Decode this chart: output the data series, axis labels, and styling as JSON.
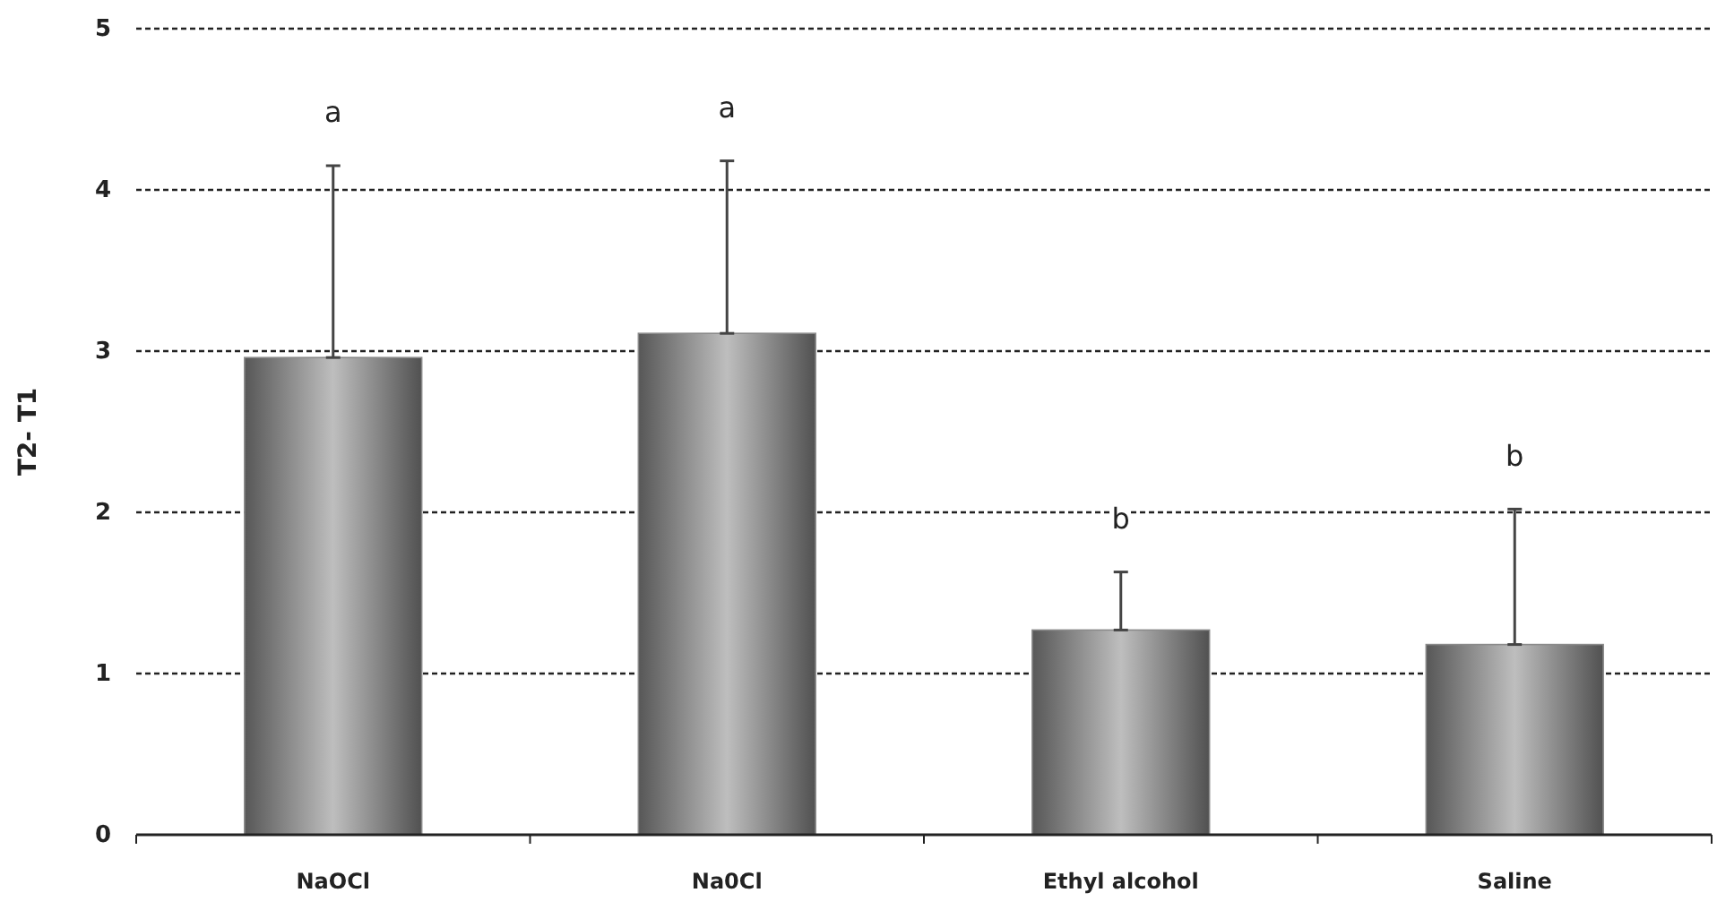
{
  "chart_data": {
    "type": "bar",
    "ylabel": "T2- T1",
    "categories": [
      "NaOCl",
      "Na0Cl",
      "Ethyl alcohol",
      "Saline"
    ],
    "values": [
      2.96,
      3.11,
      1.27,
      1.18
    ],
    "errors": [
      [
        2.96,
        4.15
      ],
      [
        3.11,
        4.18
      ],
      [
        1.27,
        1.63
      ],
      [
        1.18,
        2.02
      ]
    ],
    "color": "#8a8a8a",
    "ylim": [
      0,
      5
    ],
    "yticks": [
      0,
      1,
      2,
      3,
      4,
      5
    ],
    "grid": "y",
    "line_style": "dashed",
    "annotations": [
      "a",
      "a",
      "b",
      "b"
    ]
  }
}
